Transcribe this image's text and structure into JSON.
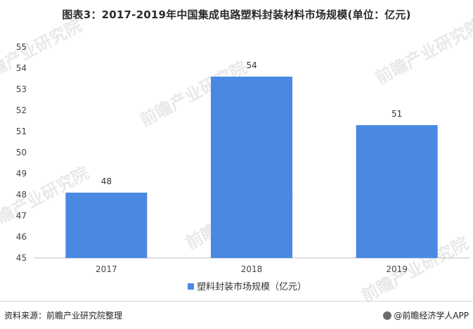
{
  "title": "图表3：2017-2019年中国集成电路塑料封装材料市场规模(单位：亿元)",
  "watermark": "前瞻产业研究院",
  "footer": {
    "source": "资料来源：前瞻产业研究院整理",
    "brand": "@前瞻经济学人APP"
  },
  "chart_data": {
    "type": "bar",
    "categories": [
      "2017",
      "2018",
      "2019"
    ],
    "series": [
      {
        "name": "塑料封装市场规模（亿元）",
        "values": [
          48.1,
          53.6,
          51.3
        ],
        "labels": [
          "48",
          "54",
          "51"
        ],
        "color": "#4a89e3"
      }
    ],
    "yticks": [
      "45",
      "46",
      "47",
      "48",
      "49",
      "50",
      "51",
      "52",
      "53",
      "54",
      "55"
    ],
    "ylim": [
      45,
      55
    ],
    "grid": false,
    "legend": "bottom"
  }
}
